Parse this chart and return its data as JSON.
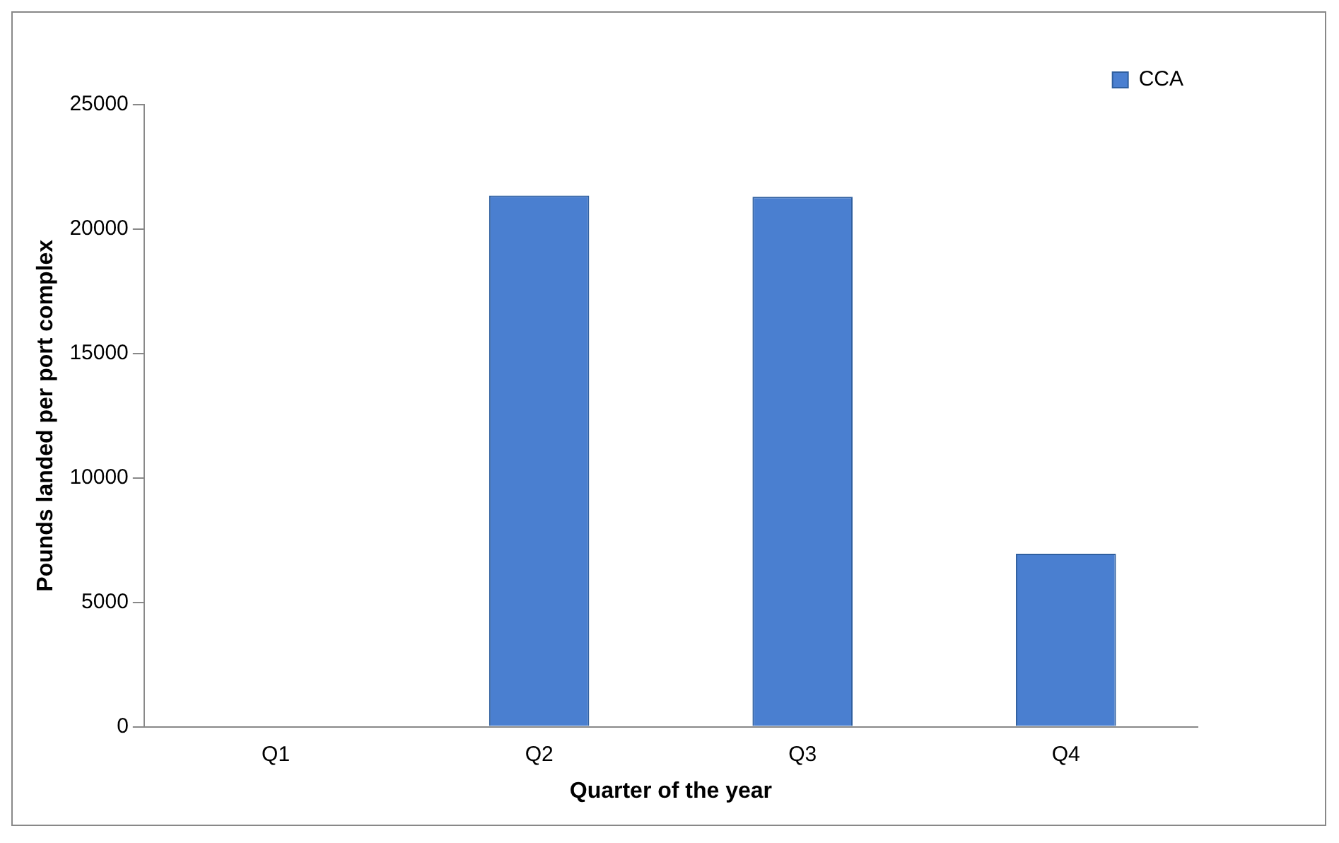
{
  "chart_data": {
    "type": "bar",
    "xlabel": "Quarter of the year",
    "ylabel": "Pounds landed per port complex",
    "categories": [
      "Q1",
      "Q2",
      "Q3",
      "Q4"
    ],
    "series": [
      {
        "name": "CCA",
        "color": "#4a7fd0",
        "values": [
          0,
          21350,
          21300,
          6950
        ]
      }
    ],
    "ylim": [
      0,
      25000
    ],
    "yticks": [
      0,
      5000,
      10000,
      15000,
      20000,
      25000
    ],
    "grid": false,
    "legend": "top right"
  }
}
